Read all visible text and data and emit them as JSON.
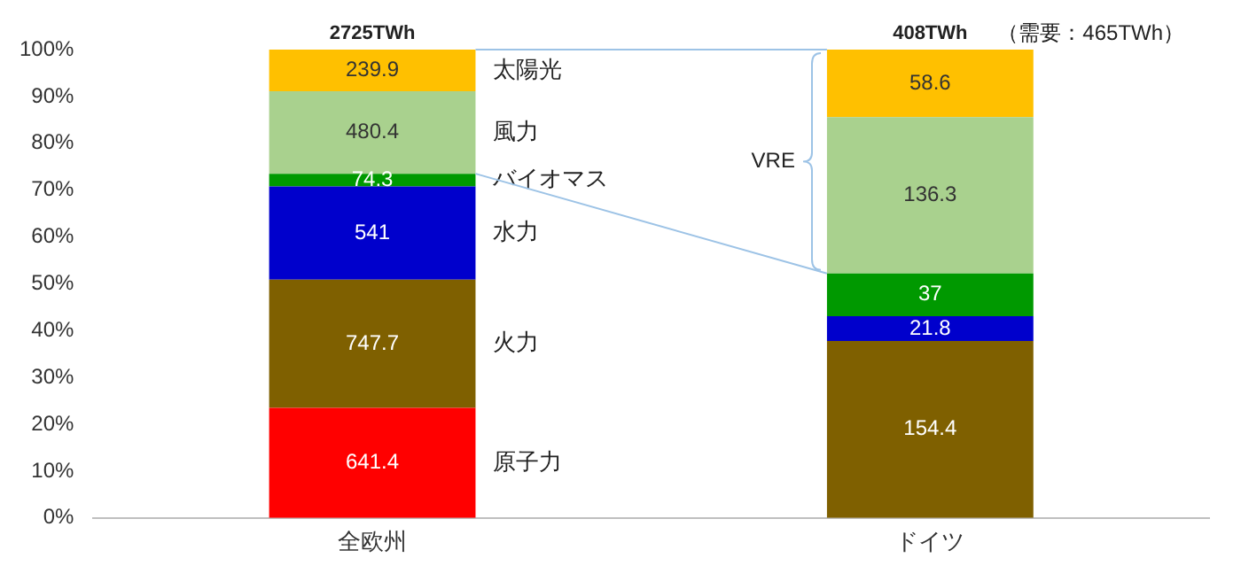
{
  "chart_data": {
    "type": "bar",
    "stacked": true,
    "categories": [
      "全欧州",
      "ドイツ"
    ],
    "series": [
      {
        "name": "原子力",
        "color": "#ff0000",
        "values": [
          23.5,
          0
        ]
      },
      {
        "name": "火力",
        "color": "#7f6000",
        "values": [
          27.4,
          37.8
        ]
      },
      {
        "name": "水力",
        "color": "#0000cc",
        "values": [
          19.9,
          5.3
        ]
      },
      {
        "name": "バイオマス",
        "color": "#009900",
        "values": [
          2.7,
          9.1
        ]
      },
      {
        "name": "風力",
        "color": "#a9d18e",
        "values": [
          17.6,
          33.4
        ]
      },
      {
        "name": "太陽光",
        "color": "#ffc000",
        "values": [
          8.9,
          14.4
        ]
      }
    ],
    "annotations": [
      "2725TWh",
      "408TWh",
      "（需要：465TWh）",
      "VRE",
      "641.4",
      "747.7",
      "541",
      "74.3",
      "480.4",
      "239.9",
      "154.4",
      "21.8",
      "37",
      "136.3",
      "58.6"
    ],
    "ylim": [
      0,
      100
    ],
    "yticks": [
      {
        "value": 0,
        "label": "0%"
      },
      {
        "value": 10,
        "label": "10%"
      },
      {
        "value": 20,
        "label": "20%"
      },
      {
        "value": 30,
        "label": "30%"
      },
      {
        "value": 40,
        "label": "40%"
      },
      {
        "value": 50,
        "label": "50%"
      },
      {
        "value": 60,
        "label": "60%"
      },
      {
        "value": 70,
        "label": "70%"
      },
      {
        "value": 80,
        "label": "80%"
      },
      {
        "value": 90,
        "label": "90%"
      },
      {
        "value": 100,
        "label": "100%"
      }
    ],
    "grid": false,
    "legend": false
  }
}
